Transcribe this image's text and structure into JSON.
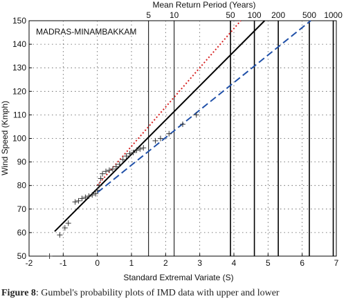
{
  "chart_data": {
    "type": "scatter",
    "title": "MADRAS-MINAMBAKKAM",
    "xlabel": "Standard Extremal Variate (S)",
    "ylabel": "Wind Speed (Kmph)",
    "top_axis_label": "Mean Return Period (Years)",
    "xlim": [
      -2,
      7
    ],
    "ylim": [
      50,
      150
    ],
    "x_ticks": [
      -2,
      -1,
      0,
      1,
      2,
      3,
      4,
      5,
      6,
      7
    ],
    "y_ticks": [
      50,
      60,
      70,
      80,
      90,
      100,
      110,
      120,
      130,
      140,
      150
    ],
    "grid": "dotted",
    "return_periods": [
      {
        "label": "5",
        "s": 1.5
      },
      {
        "label": "10",
        "s": 2.25
      },
      {
        "label": "50",
        "s": 3.9
      },
      {
        "label": "100",
        "s": 4.6
      },
      {
        "label": "200",
        "s": 5.3
      },
      {
        "label": "500",
        "s": 6.21
      },
      {
        "label": "1000",
        "s": 6.91
      }
    ],
    "series": [
      {
        "style": "markers",
        "marker": "+",
        "color": "#333333",
        "points": [
          [
            -1.4,
            50
          ],
          [
            -1.1,
            59
          ],
          [
            -0.95,
            62
          ],
          [
            -0.85,
            64
          ],
          [
            -0.65,
            73
          ],
          [
            -0.55,
            73.5
          ],
          [
            -0.45,
            74.5
          ],
          [
            -0.35,
            75
          ],
          [
            -0.25,
            75.5
          ],
          [
            -0.15,
            76
          ],
          [
            -0.05,
            76.5
          ],
          [
            0.0,
            78
          ],
          [
            0.05,
            80
          ],
          [
            0.1,
            83
          ],
          [
            0.15,
            85
          ],
          [
            0.25,
            86
          ],
          [
            0.35,
            86.5
          ],
          [
            0.45,
            87
          ],
          [
            0.55,
            88
          ],
          [
            0.65,
            89
          ],
          [
            0.75,
            91
          ],
          [
            0.85,
            92.5
          ],
          [
            0.95,
            93.5
          ],
          [
            1.05,
            94
          ],
          [
            1.15,
            95
          ],
          [
            1.25,
            95.5
          ],
          [
            1.35,
            96
          ],
          [
            1.7,
            99
          ],
          [
            1.85,
            100
          ],
          [
            2.1,
            102
          ],
          [
            2.5,
            106
          ],
          [
            2.9,
            110
          ]
        ]
      },
      {
        "style": "solid",
        "color": "#000000",
        "points": [
          [
            -1.25,
            60.5
          ],
          [
            4.9,
            150
          ]
        ]
      },
      {
        "style": "dotted",
        "color": "#d62020",
        "points": [
          [
            0.0,
            80
          ],
          [
            4.2,
            150
          ]
        ]
      },
      {
        "style": "dashed",
        "color": "#2050a8",
        "points": [
          [
            0.0,
            77
          ],
          [
            6.25,
            150
          ]
        ]
      }
    ]
  },
  "caption": {
    "label": "Figure 8",
    "text": ": Gumbel's probability plots of IMD data with upper and lower"
  }
}
